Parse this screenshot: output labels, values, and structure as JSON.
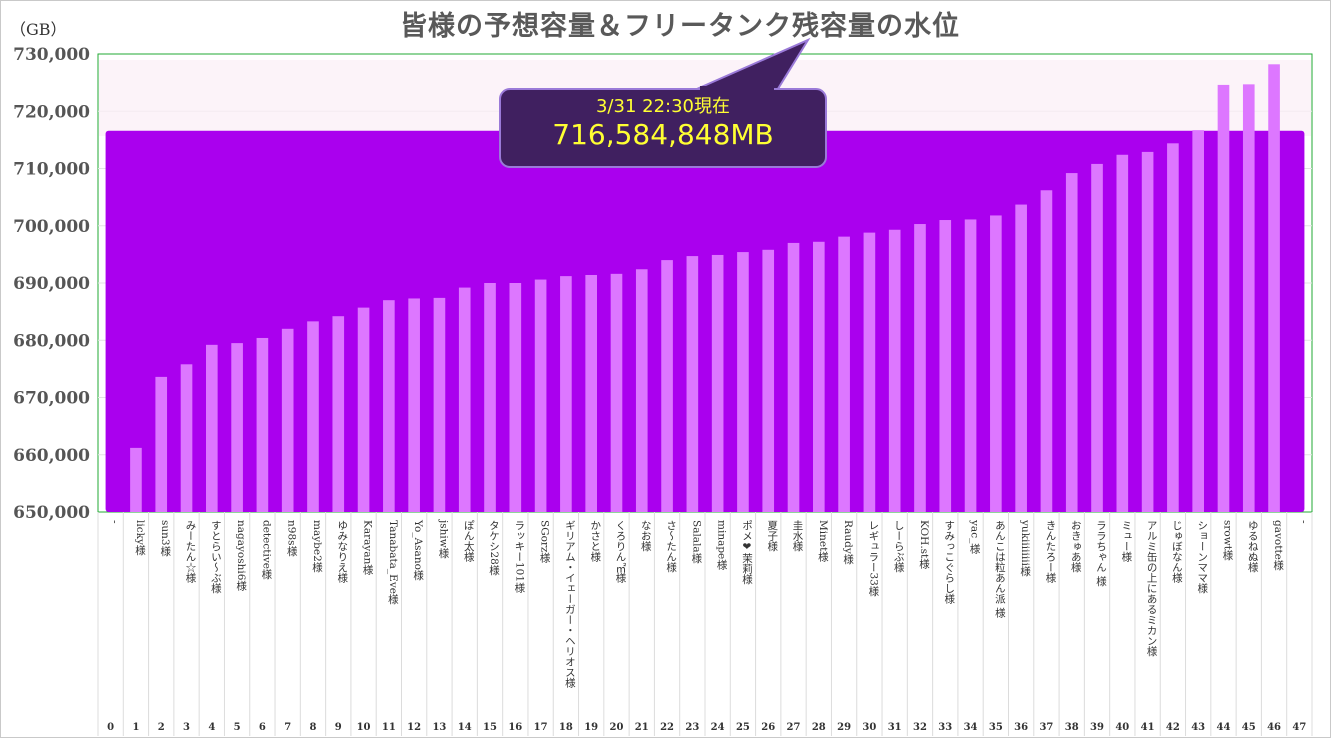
{
  "chart_data": {
    "type": "bar",
    "title": "皆様の予想容量＆フリータンク残容量の水位",
    "unit_label": "（GB）",
    "ylim": [
      650000,
      730000
    ],
    "yticks": [
      "650,000",
      "660,000",
      "670,000",
      "680,000",
      "690,000",
      "700,000",
      "710,000",
      "720,000",
      "730,000"
    ],
    "categories": [
      "-",
      "licky様",
      "sun3様",
      "みーたん☆様",
      "すとらい～ぶ様",
      "nagayoshi6様",
      "detective様",
      "n98s様",
      "maybe2様",
      "ゆみなりえ様",
      "Karayan様",
      "Tanabata_Eve様",
      "Yo_Asano様",
      "jshiw様",
      "ぽん太様",
      "タケシ28様",
      "ラッキー101様",
      "SGorz様",
      "ギリアム・イェーガー・ヘリオス様",
      "かさと様",
      "くろりん㎡様",
      "なお様",
      "さ～たん様",
      "Salala様",
      "minape様",
      "ポメ❤茉莉様",
      "夏子様",
      "圭水様",
      "Minet様",
      "Raudy様",
      "レギュラー33様",
      "しーらぶ様",
      "KOH.st様",
      "すみっこぐらし様",
      "yac_様",
      "あんこは粒あん派 様",
      "yukiiiiiiii様",
      "きんたろー様",
      "おきゅあ様",
      "ララちゃん 様",
      "ミュー様",
      "アルミ缶の上にあるミカン様",
      "じゅぼなん様",
      "ショーンママ様",
      "srowt様",
      "ゆるねぬ様",
      "gavotte様",
      "-"
    ],
    "index_labels": [
      "0",
      "1",
      "2",
      "3",
      "4",
      "5",
      "6",
      "7",
      "8",
      "9",
      "10",
      "11",
      "12",
      "13",
      "14",
      "15",
      "16",
      "17",
      "18",
      "19",
      "20",
      "21",
      "22",
      "23",
      "24",
      "25",
      "26",
      "27",
      "28",
      "29",
      "30",
      "31",
      "32",
      "33",
      "34",
      "35",
      "36",
      "37",
      "38",
      "39",
      "40",
      "41",
      "42",
      "43",
      "44",
      "45",
      "46",
      "47"
    ],
    "series": [
      {
        "type": "area",
        "level": 716584.848,
        "color": "#aa00ee"
      },
      {
        "type": "bar",
        "color": "#dd77ff",
        "values": [
          650000,
          661200,
          673600,
          675800,
          679200,
          679500,
          680400,
          682000,
          683300,
          684200,
          685700,
          687000,
          687300,
          687400,
          689200,
          690000,
          690000,
          690600,
          691200,
          691400,
          691600,
          692400,
          694000,
          694700,
          694900,
          695400,
          695800,
          697000,
          697200,
          698100,
          698800,
          699300,
          700300,
          701000,
          701100,
          701800,
          703700,
          706200,
          709200,
          710800,
          712400,
          712900,
          714400,
          716700,
          724600,
          724700,
          728200,
          650000
        ]
      }
    ],
    "callout": {
      "date": "3/31 22:30現在",
      "value": "716,584,848MB"
    },
    "plot_border_color": "#22aa33",
    "grid": true
  }
}
